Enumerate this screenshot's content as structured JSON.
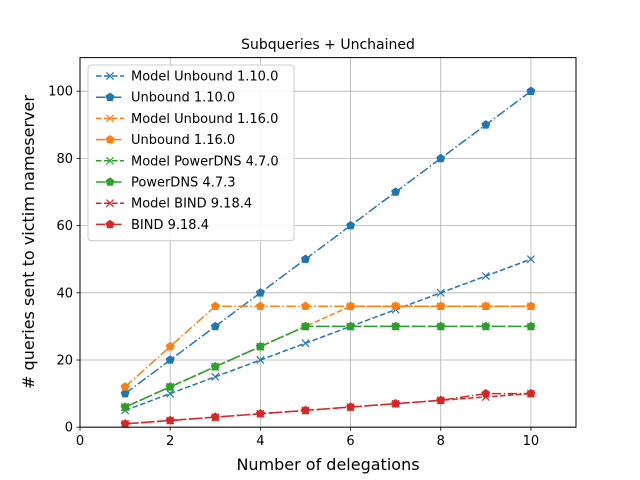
{
  "chart_data": {
    "type": "line",
    "title": "Subqueries + Unchained",
    "xlabel": "Number of delegations",
    "ylabel": "# queries sent to victim nameserver",
    "xlim": [
      0,
      11
    ],
    "ylim": [
      0,
      110
    ],
    "xticks": [
      0,
      2,
      4,
      6,
      8,
      10
    ],
    "yticks": [
      0,
      20,
      40,
      60,
      80,
      100
    ],
    "grid": true,
    "legend_position": "upper-left",
    "x": [
      1,
      2,
      3,
      4,
      5,
      6,
      7,
      8,
      9,
      10
    ],
    "series": [
      {
        "name": "Model Unbound 1.10.0",
        "color": "#1f77b4",
        "linestyle": "dashed",
        "marker": "x",
        "values": [
          5,
          10,
          15,
          20,
          25,
          30,
          35,
          40,
          45,
          50
        ]
      },
      {
        "name": "Unbound 1.10.0",
        "color": "#1f77b4",
        "linestyle": "dashdot",
        "marker": "pentagon",
        "values": [
          10,
          20,
          30,
          40,
          50,
          60,
          70,
          80,
          90,
          100
        ]
      },
      {
        "name": "Model Unbound 1.16.0",
        "color": "#ff7f0e",
        "linestyle": "dashed",
        "marker": "x",
        "values": [
          6,
          12,
          18,
          24,
          30,
          36,
          36,
          36,
          36,
          36
        ]
      },
      {
        "name": "Unbound 1.16.0",
        "color": "#ff7f0e",
        "linestyle": "dashdot",
        "marker": "pentagon",
        "values": [
          12,
          24,
          36,
          36,
          36,
          36,
          36,
          36,
          36,
          36
        ]
      },
      {
        "name": "Model PowerDNS 4.7.0",
        "color": "#2ca02c",
        "linestyle": "dashed",
        "marker": "x",
        "values": [
          6,
          12,
          18,
          24,
          30,
          30,
          30,
          30,
          30,
          30
        ]
      },
      {
        "name": "PowerDNS 4.7.3",
        "color": "#2ca02c",
        "linestyle": "dashdot",
        "marker": "pentagon",
        "values": [
          6,
          12,
          18,
          24,
          30,
          30,
          30,
          30,
          30,
          30
        ]
      },
      {
        "name": "Model BIND 9.18.4",
        "color": "#d62728",
        "linestyle": "dashed",
        "marker": "x",
        "values": [
          1,
          2,
          3,
          4,
          5,
          6,
          7,
          8,
          9,
          10
        ]
      },
      {
        "name": "BIND 9.18.4",
        "color": "#d62728",
        "linestyle": "dashdot",
        "marker": "pentagon",
        "values": [
          1,
          2,
          3,
          4,
          5,
          6,
          7,
          8,
          10,
          10
        ]
      }
    ]
  }
}
